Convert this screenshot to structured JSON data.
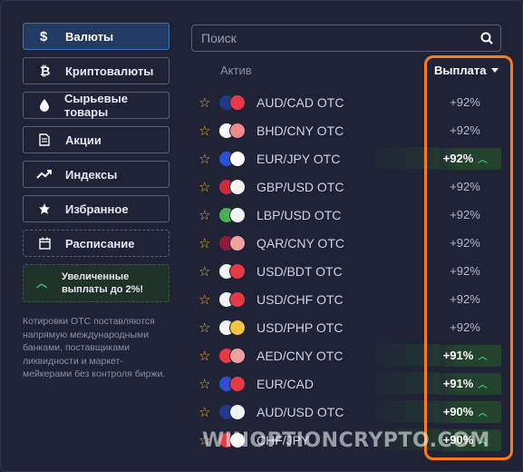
{
  "sidebar": {
    "categories": [
      {
        "label": "Валюты",
        "icon": "dollar-icon",
        "active": true
      },
      {
        "label": "Криптовалюты",
        "icon": "bitcoin-icon"
      },
      {
        "label": "Сырьевые товары",
        "icon": "drop-icon"
      },
      {
        "label": "Акции",
        "icon": "document-icon"
      },
      {
        "label": "Индексы",
        "icon": "trend-icon"
      },
      {
        "label": "Избранное",
        "icon": "star-icon"
      },
      {
        "label": "Расписание",
        "icon": "calendar-icon"
      }
    ],
    "promo": "Увеличенные выплаты до 2%!",
    "note": "Котировки OTC поставляются напрямую международными банками, поставщиками ликвидности и маркет-мейкерами без контроля биржи."
  },
  "search": {
    "placeholder": "Поиск"
  },
  "table": {
    "col_asset": "Актив",
    "col_payout": "Выплата",
    "rows": [
      {
        "name": "AUD/CAD OTC",
        "payout": "+92%",
        "hot": false,
        "c1": "#1f3a8a",
        "c2": "#e63946"
      },
      {
        "name": "BHD/CNY OTC",
        "payout": "+92%",
        "hot": false,
        "c1": "#ffffff",
        "c2": "#f08a8a"
      },
      {
        "name": "EUR/JPY OTC",
        "payout": "+92%",
        "hot": true,
        "c1": "#2d4fd6",
        "c2": "#ffffff"
      },
      {
        "name": "GBP/USD OTC",
        "payout": "+92%",
        "hot": false,
        "c1": "#cc2b3a",
        "c2": "#f3f3f3"
      },
      {
        "name": "LBP/USD OTC",
        "payout": "+92%",
        "hot": false,
        "c1": "#4caf50",
        "c2": "#f3f3f3"
      },
      {
        "name": "QAR/CNY OTC",
        "payout": "+92%",
        "hot": false,
        "c1": "#8d1b3d",
        "c2": "#f3a0a0"
      },
      {
        "name": "USD/BDT OTC",
        "payout": "+92%",
        "hot": false,
        "c1": "#f3f3f3",
        "c2": "#e63946"
      },
      {
        "name": "USD/CHF OTC",
        "payout": "+92%",
        "hot": false,
        "c1": "#f3f3f3",
        "c2": "#e63946"
      },
      {
        "name": "USD/PHP OTC",
        "payout": "+92%",
        "hot": false,
        "c1": "#f3f3f3",
        "c2": "#f5c542"
      },
      {
        "name": "AED/CNY OTC",
        "payout": "+91%",
        "hot": true,
        "c1": "#e63946",
        "c2": "#f3a0a0"
      },
      {
        "name": "EUR/CAD",
        "payout": "+91%",
        "hot": true,
        "c1": "#2d4fd6",
        "c2": "#e63946"
      },
      {
        "name": "AUD/USD OTC",
        "payout": "+90%",
        "hot": true,
        "c1": "#1f3a8a",
        "c2": "#f3f3f3"
      },
      {
        "name": "CHF/JPY",
        "payout": "+90%",
        "hot": true,
        "c1": "#e63946",
        "c2": "#f3f3f3"
      }
    ]
  },
  "watermark": "WINOPTIONCRYPTO.COM",
  "colors": {
    "accent": "#ff7a18",
    "active": "#233a63",
    "up": "#2ecc71",
    "star": "#f0a92d"
  }
}
